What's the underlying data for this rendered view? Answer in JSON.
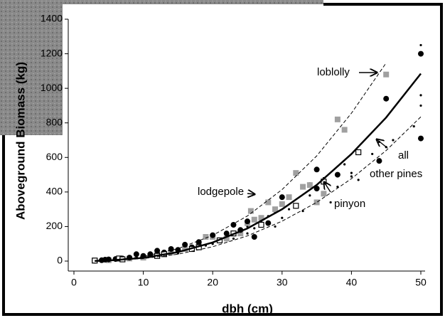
{
  "chart_data": {
    "type": "scatter",
    "xlabel": "dbh (cm)",
    "ylabel": "Aboveground Biomass (kg)",
    "xlim": [
      0,
      50
    ],
    "ylim": [
      0,
      1400
    ],
    "xticks": [
      0,
      10,
      20,
      30,
      40,
      50
    ],
    "yticks": [
      0,
      200,
      400,
      600,
      800,
      1000,
      1200,
      1400
    ],
    "annotations": [
      "loblolly",
      "lodgepole",
      "pinyon",
      "all",
      "other pines"
    ],
    "series": [
      {
        "marker": "dot",
        "color": "#000000",
        "x": [
          4,
          6,
          8,
          9,
          11,
          13,
          15,
          16,
          18,
          19,
          20,
          21,
          22,
          23,
          24,
          25,
          25,
          26,
          27,
          28,
          29,
          29,
          30,
          31,
          32,
          33,
          34,
          34,
          35,
          36,
          37,
          38,
          39,
          40,
          40,
          41,
          43,
          44,
          45,
          46,
          49,
          50,
          50,
          50
        ],
        "values": [
          4,
          8,
          12,
          18,
          25,
          35,
          45,
          60,
          70,
          90,
          100,
          115,
          150,
          130,
          170,
          200,
          160,
          190,
          230,
          260,
          200,
          280,
          250,
          300,
          310,
          290,
          380,
          450,
          410,
          480,
          340,
          430,
          560,
          510,
          490,
          470,
          620,
          690,
          660,
          700,
          780,
          960,
          900,
          1250
        ]
      },
      {
        "marker": "square",
        "color": "#a0a0a0",
        "x": [
          3,
          5,
          8,
          10,
          12,
          14,
          16,
          18,
          19,
          20,
          22,
          24,
          25,
          25.5,
          26,
          27,
          28,
          29,
          30,
          31,
          32,
          33,
          34,
          35,
          36,
          38,
          39,
          45
        ],
        "values": [
          3,
          5,
          15,
          20,
          35,
          50,
          70,
          95,
          140,
          140,
          130,
          160,
          220,
          290,
          240,
          250,
          340,
          300,
          330,
          370,
          510,
          430,
          440,
          340,
          390,
          820,
          760,
          1080
        ]
      },
      {
        "marker": "circle",
        "color": "#000000",
        "x": [
          3,
          4,
          4.5,
          5,
          6,
          7,
          8,
          9,
          10,
          11,
          12,
          13,
          14,
          15,
          16,
          17,
          18,
          20,
          22,
          23,
          24,
          25,
          26,
          28,
          30,
          35,
          35,
          38,
          44,
          45,
          50,
          50
        ],
        "values": [
          2,
          5,
          8,
          10,
          12,
          15,
          20,
          40,
          30,
          40,
          60,
          50,
          70,
          65,
          95,
          80,
          110,
          150,
          160,
          210,
          180,
          230,
          140,
          220,
          370,
          530,
          420,
          500,
          580,
          940,
          1200,
          710
        ]
      },
      {
        "marker": "open-square",
        "color": "#000000",
        "x": [
          3,
          6.5,
          7,
          12,
          13,
          17,
          18,
          21,
          23,
          27,
          32,
          36,
          41
        ],
        "values": [
          3,
          15,
          10,
          30,
          40,
          70,
          80,
          120,
          160,
          210,
          320,
          460,
          630
        ]
      },
      {
        "marker": "dashed",
        "color": "#000000",
        "x": [
          3,
          5,
          10,
          15,
          20,
          25,
          30,
          35,
          40,
          45
        ],
        "values": [
          1.2,
          4.6,
          26,
          72,
          149,
          261,
          414,
          609,
          856,
          1147
        ]
      },
      {
        "marker": "dashed",
        "color": "#000000",
        "x": [
          3,
          5,
          10,
          15,
          20,
          25,
          30,
          35,
          40,
          45,
          50
        ],
        "values": [
          0.7,
          2.5,
          14.5,
          40,
          83,
          146,
          231,
          340,
          477,
          640,
          835
        ]
      },
      {
        "marker": "line",
        "color": "#000000",
        "x": [
          3,
          5,
          10,
          15,
          20,
          25,
          30,
          35,
          40,
          45,
          50
        ],
        "values": [
          0.9,
          3.3,
          18.8,
          52,
          108,
          189,
          300,
          441,
          620,
          831,
          1085
        ]
      }
    ]
  }
}
